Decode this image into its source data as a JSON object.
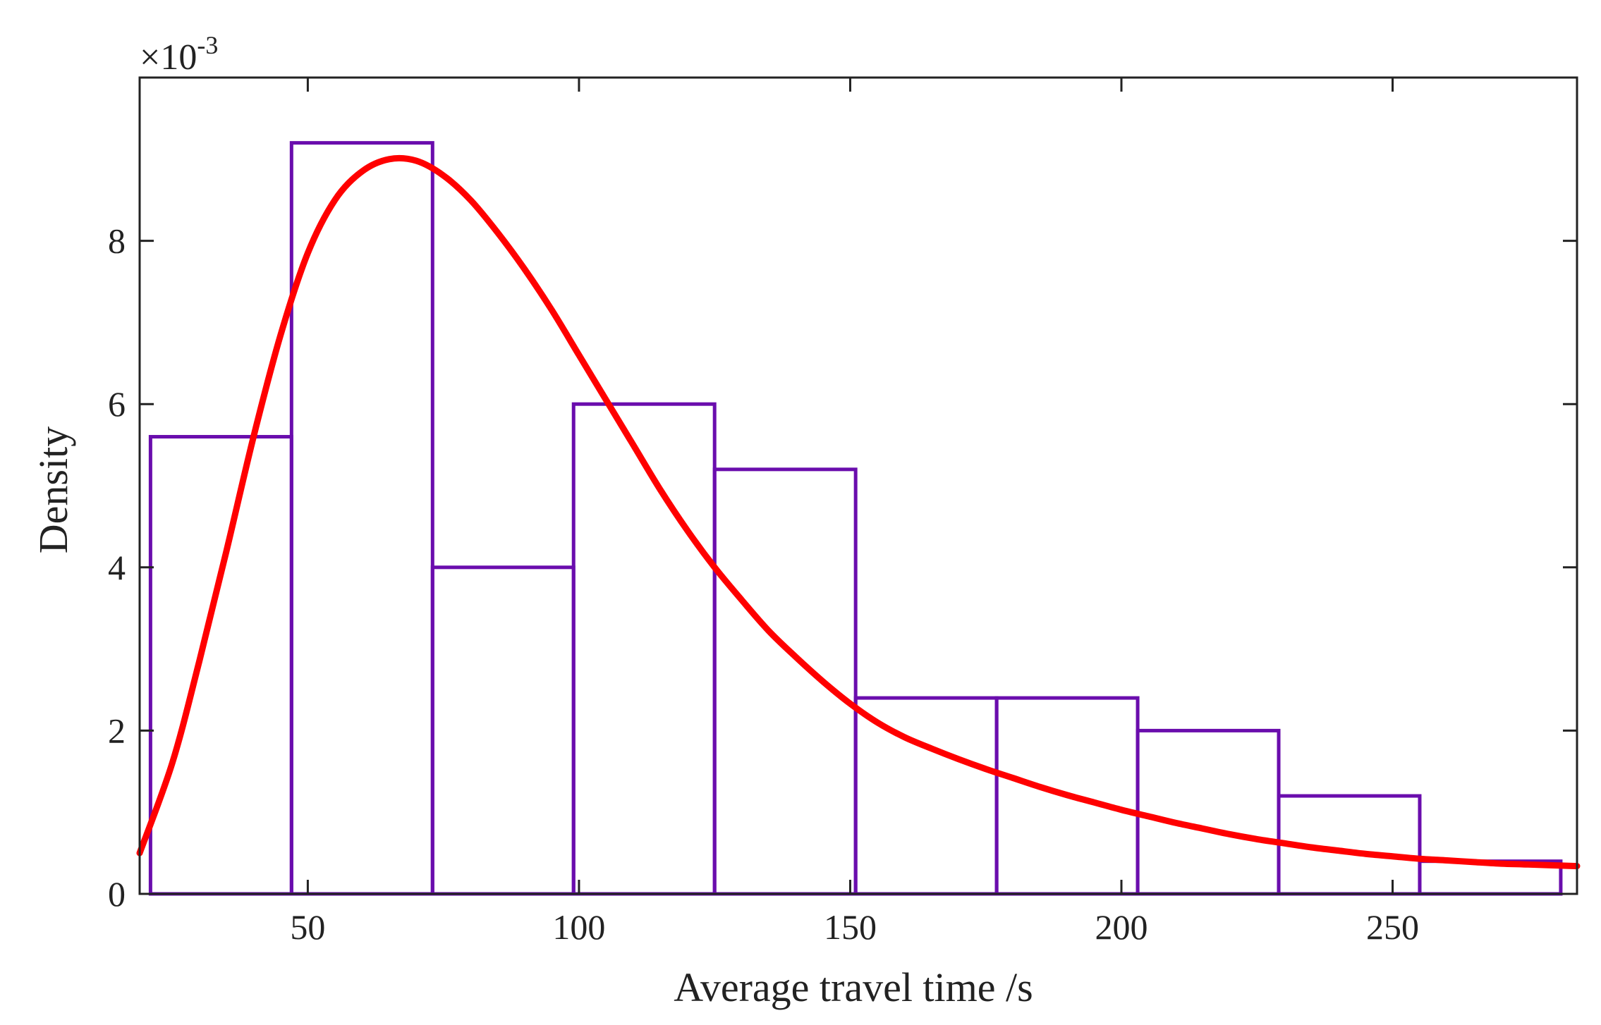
{
  "chart_data": {
    "type": "bar",
    "subtype": "histogram-with-fitted-density",
    "xlabel": "Average travel time /s",
    "ylabel": "Density",
    "y_exponent_label": "×10",
    "y_exponent_power": "-3",
    "xlim": [
      19,
      284
    ],
    "ylim": [
      0,
      10
    ],
    "x_ticks": [
      50,
      100,
      150,
      200,
      250
    ],
    "y_ticks": [
      0,
      2,
      4,
      6,
      8
    ],
    "x_tick_labels": [
      "50",
      "100",
      "150",
      "200",
      "250"
    ],
    "y_tick_labels": [
      "0",
      "2",
      "4",
      "6",
      "8"
    ],
    "grid": false,
    "legend": "none",
    "histogram": {
      "bin_edges": [
        21,
        47,
        73,
        99,
        125,
        151,
        177,
        203,
        229,
        255,
        281
      ],
      "densities": [
        5.6,
        9.2,
        4.0,
        6.0,
        5.2,
        2.4,
        2.4,
        2.0,
        1.2,
        0.4
      ],
      "color": "#6a0dad"
    },
    "fit_curve": {
      "color": "#ff0000",
      "x": [
        19,
        25,
        30,
        35,
        40,
        45,
        50,
        55,
        60,
        65,
        70,
        75,
        80,
        85,
        90,
        95,
        100,
        105,
        110,
        115,
        120,
        125,
        130,
        135,
        140,
        145,
        150,
        155,
        160,
        165,
        170,
        175,
        180,
        185,
        190,
        195,
        200,
        205,
        210,
        215,
        220,
        225,
        230,
        235,
        240,
        245,
        250,
        255,
        260,
        265,
        270,
        275,
        284
      ],
      "y": [
        0.5,
        1.6,
        2.85,
        4.2,
        5.6,
        6.85,
        7.85,
        8.5,
        8.85,
        9.0,
        8.98,
        8.8,
        8.5,
        8.1,
        7.65,
        7.15,
        6.6,
        6.05,
        5.5,
        4.95,
        4.45,
        4.0,
        3.6,
        3.22,
        2.9,
        2.6,
        2.33,
        2.1,
        1.92,
        1.78,
        1.65,
        1.53,
        1.42,
        1.31,
        1.21,
        1.12,
        1.03,
        0.95,
        0.87,
        0.8,
        0.73,
        0.67,
        0.62,
        0.57,
        0.53,
        0.49,
        0.46,
        0.43,
        0.41,
        0.39,
        0.37,
        0.36,
        0.34
      ]
    }
  }
}
